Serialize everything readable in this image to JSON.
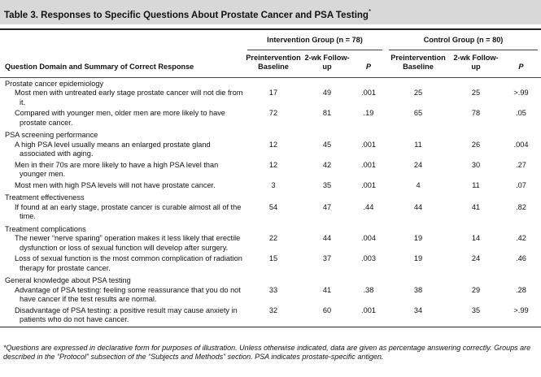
{
  "header": {
    "title": "Table 3. Responses to Specific Questions About Prostate Cancer and PSA Testing",
    "title_mark": "*"
  },
  "table": {
    "groups": [
      "Intervention Group (n = 78)",
      "Control Group (n = 80)"
    ],
    "first_column": "Question Domain and Summary of Correct Response",
    "columns": [
      "Preintervention Baseline",
      "2-wk Follow-up",
      "P",
      "Preintervention Baseline",
      "2-wk Follow-up",
      "P"
    ],
    "sections": [
      {
        "title": "Prostate cancer epidemiology",
        "items": [
          {
            "text": "Most men with untreated early stage prostate cancer will not die from it.",
            "values": [
              "17",
              "49",
              ".001",
              "25",
              "25",
              ">.99"
            ]
          },
          {
            "text": "Compared with younger men, older men are more likely to have prostate cancer.",
            "values": [
              "72",
              "81",
              ".19",
              "65",
              "78",
              ".05"
            ]
          }
        ]
      },
      {
        "title": "PSA screening performance",
        "items": [
          {
            "text": "A high PSA level usually means an enlarged prostate gland associated with aging.",
            "values": [
              "12",
              "45",
              ".001",
              "11",
              "26",
              ".004"
            ]
          },
          {
            "text": "Men in their 70s are more likely to have a high PSA level than younger men.",
            "values": [
              "12",
              "42",
              ".001",
              "24",
              "30",
              ".27"
            ]
          },
          {
            "text": "Most men with high PSA levels will not have prostate cancer.",
            "values": [
              "3",
              "35",
              ".001",
              "4",
              "11",
              ".07"
            ]
          }
        ]
      },
      {
        "title": "Treatment effectiveness",
        "items": [
          {
            "text": "If found at an early stage, prostate cancer is curable almost all of the time.",
            "values": [
              "54",
              "47",
              ".44",
              "44",
              "41",
              ".82"
            ]
          }
        ]
      },
      {
        "title": "Treatment complications",
        "items": [
          {
            "text": "The newer “nerve sparing” operation makes it less likely that erectile dysfunction or loss of sexual function will develop after surgery.",
            "values": [
              "22",
              "44",
              ".004",
              "19",
              "14",
              ".42"
            ]
          },
          {
            "text": "Loss of sexual function is the most common complication of radiation therapy for prostate cancer.",
            "values": [
              "15",
              "37",
              ".003",
              "19",
              "24",
              ".46"
            ]
          }
        ]
      },
      {
        "title": "General knowledge about PSA testing",
        "items": [
          {
            "text": "Advantage of PSA testing: feeling some reassurance that you do not have cancer if the test results are normal.",
            "values": [
              "33",
              "41",
              ".38",
              "38",
              "29",
              ".28"
            ]
          },
          {
            "text": "Disadvantage of PSA testing: a positive result may cause anxiety in patients who do not have cancer.",
            "values": [
              "32",
              "60",
              ".001",
              "34",
              "35",
              ">.99"
            ]
          }
        ]
      }
    ]
  },
  "footnote": "*Questions are expressed in declarative form for purposes of illustration. Unless otherwise indicated, data are given as percentage answering correctly. Groups are described in the “Protocol” subsection of the “Subjects and Methods” section. PSA indicates prostate-specific antigen."
}
